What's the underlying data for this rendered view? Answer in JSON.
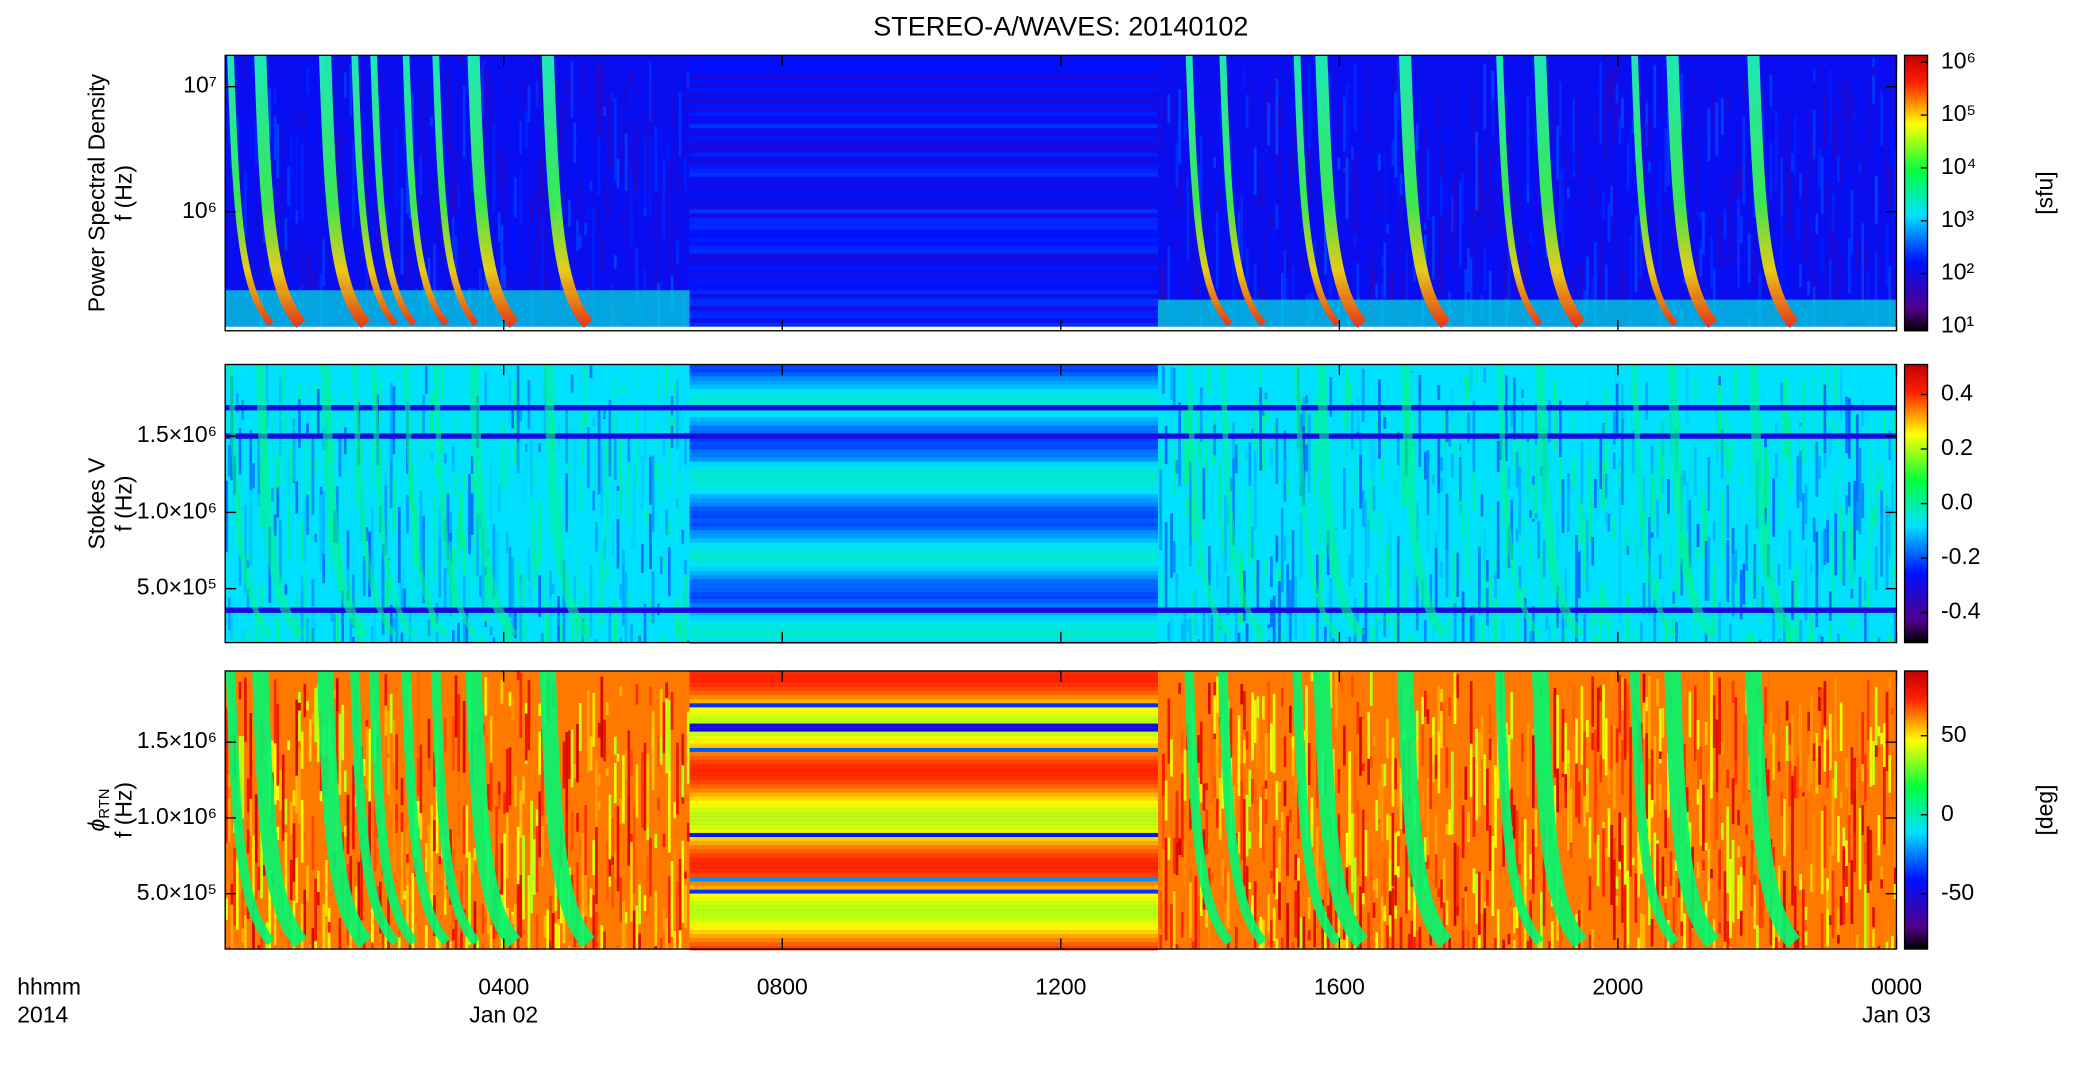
{
  "chart_data": [
    {
      "type": "heatmap",
      "title": "STEREO-A/WAVES: 20140102",
      "ylabel": [
        "Power Spectral Density",
        "f (Hz)"
      ],
      "ylog": true,
      "ylim": [
        112000,
        17800000
      ],
      "yticks": [
        {
          "value": 1000000,
          "label": "10⁶"
        },
        {
          "value": 10000000,
          "label": "10⁷"
        }
      ],
      "colorbar": {
        "log": true,
        "lim": [
          8.3,
          1350000
        ],
        "label": "[sfu]",
        "ticks": [
          {
            "value": 10,
            "label": "10¹"
          },
          {
            "value": 100,
            "label": "10²"
          },
          {
            "value": 1000,
            "label": "10³"
          },
          {
            "value": 10000,
            "label": "10⁴"
          },
          {
            "value": 100000,
            "label": "10⁵"
          },
          {
            "value": 1000000,
            "label": "10⁶"
          }
        ]
      }
    },
    {
      "type": "heatmap",
      "ylabel": [
        "Stokes V",
        "f (Hz)"
      ],
      "ylog": false,
      "ylim": [
        146000,
        1970000
      ],
      "yticks": [
        {
          "value": 500000,
          "label": "5.0×10⁵"
        },
        {
          "value": 1000000,
          "label": "1.0×10⁶"
        },
        {
          "value": 1500000,
          "label": "1.5×10⁶"
        }
      ],
      "colorbar": {
        "log": false,
        "lim": [
          -0.51,
          0.51
        ],
        "ticks": [
          -0.4,
          -0.2,
          {
            "value": 0,
            "label": "0.0"
          },
          0.2,
          0.4
        ]
      }
    },
    {
      "type": "heatmap",
      "ylabel": [
        {
          "symbol": "ϕ",
          "sub": "RTN"
        },
        "f (Hz)"
      ],
      "ylog": false,
      "ylim": [
        135000,
        1970000
      ],
      "yticks": [
        {
          "value": 500000,
          "label": "5.0×10⁵"
        },
        {
          "value": 1000000,
          "label": "1.0×10⁶"
        },
        {
          "value": 1500000,
          "label": "1.5×10⁶"
        }
      ],
      "colorbar": {
        "log": false,
        "lim": [
          -85,
          91
        ],
        "label": "[deg]",
        "ticks": [
          -50,
          0,
          50
        ]
      },
      "xlabel": [
        "hhmm",
        "2014"
      ],
      "xlim": [
        0,
        24
      ],
      "xticks": [
        {
          "value": 4,
          "label": "0400",
          "date": "Jan 02"
        },
        {
          "value": 8,
          "label": "0800"
        },
        {
          "value": 12,
          "label": "1200"
        },
        {
          "value": 16,
          "label": "1600"
        },
        {
          "value": 20,
          "label": "2000"
        },
        {
          "value": 24,
          "label": "0000",
          "date": "Jan 03"
        }
      ]
    }
  ]
}
